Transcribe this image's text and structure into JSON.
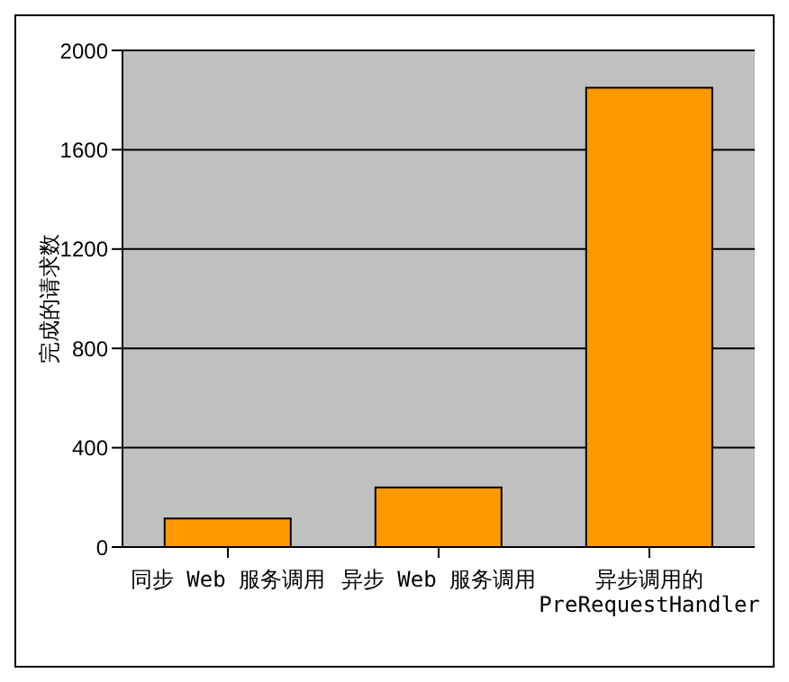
{
  "chart_data": {
    "type": "bar",
    "ylabel": "完成的请求数",
    "categories": [
      "同步 Web 服务调用",
      "异步 Web 服务调用",
      "异步调用的\nPreRequestHandler"
    ],
    "values": [
      115,
      240,
      1850
    ],
    "color": "#ff9900",
    "ylim": [
      0,
      2000
    ],
    "yticks": [
      0,
      400,
      800,
      1200,
      1600,
      2000
    ],
    "grid": "y",
    "legend": false
  }
}
